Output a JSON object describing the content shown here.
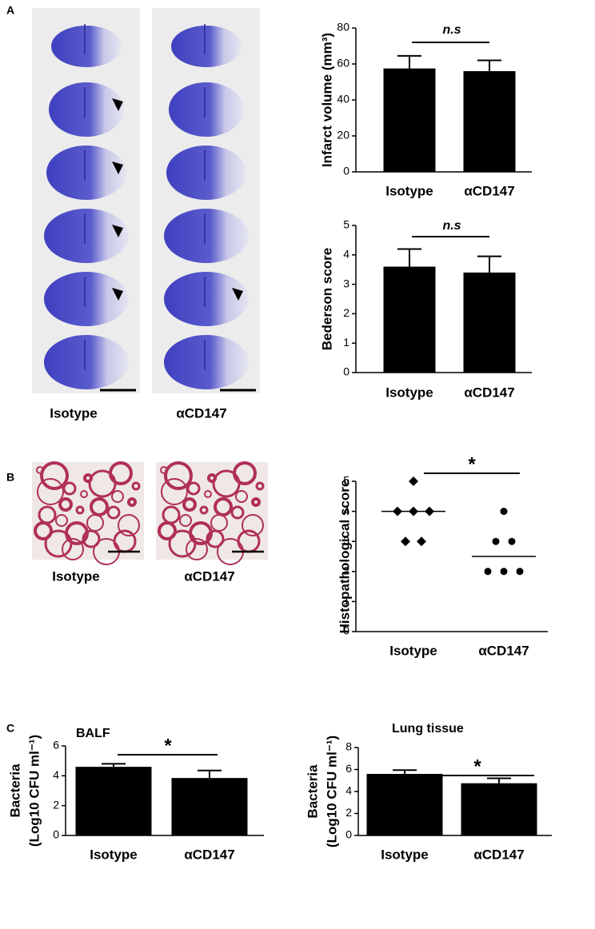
{
  "panels": [
    {
      "label": "A",
      "captions": [
        "Isotype",
        "αCD147"
      ]
    },
    {
      "label": "B",
      "captions": [
        "Isotype",
        "αCD147"
      ]
    },
    {
      "label": "C"
    }
  ],
  "chart_data": [
    {
      "type": "bar",
      "y_label": [
        "Infarct volume (mm³)"
      ],
      "categories": [
        "Isotype",
        "αCD147"
      ],
      "values": [
        57.5,
        56
      ],
      "errors": [
        7,
        6
      ],
      "color": "#000000",
      "ylim": [
        0,
        80
      ],
      "yticks": [
        0,
        20,
        40,
        60,
        80
      ],
      "annotation": "n.s"
    },
    {
      "type": "bar",
      "y_label": [
        "Bederson score"
      ],
      "categories": [
        "Isotype",
        "αCD147"
      ],
      "values": [
        3.6,
        3.4
      ],
      "errors": [
        0.6,
        0.55
      ],
      "color": "#000000",
      "ylim": [
        0,
        5
      ],
      "yticks": [
        0,
        1,
        2,
        3,
        4,
        5
      ],
      "annotation": "n.s"
    },
    {
      "type": "dot",
      "y_label": [
        "Histopathological score"
      ],
      "categories": [
        "Isotype",
        "αCD147"
      ],
      "values": [
        [
          5,
          4,
          4,
          4,
          3,
          3
        ],
        [
          4,
          3,
          3,
          2,
          2,
          2
        ]
      ],
      "medians": [
        4,
        2.5
      ],
      "markers": [
        "diamond",
        "circle"
      ],
      "color": "#000000",
      "ylim": [
        0,
        5
      ],
      "yticks": [
        0,
        1,
        2,
        3,
        4,
        5
      ],
      "annotation": "*"
    },
    {
      "type": "bar",
      "title": "BALF",
      "y_label": [
        "Bacteria",
        "(Log10 CFU ml⁻¹)"
      ],
      "categories": [
        "Isotype",
        "αCD147"
      ],
      "values": [
        4.6,
        3.85
      ],
      "errors": [
        0.2,
        0.5
      ],
      "color": "#000000",
      "ylim": [
        0,
        6
      ],
      "yticks": [
        0,
        2,
        4,
        6
      ],
      "annotation": "*"
    },
    {
      "type": "bar",
      "title": "Lung tissue",
      "y_label": [
        "Bacteria",
        "(Log10 CFU ml⁻¹)"
      ],
      "categories": [
        "Isotype",
        "αCD147"
      ],
      "values": [
        5.6,
        4.75
      ],
      "errors": [
        0.35,
        0.45
      ],
      "color": "#000000",
      "ylim": [
        0,
        8
      ],
      "yticks": [
        0,
        2,
        4,
        6,
        8
      ],
      "annotation": "*"
    }
  ]
}
